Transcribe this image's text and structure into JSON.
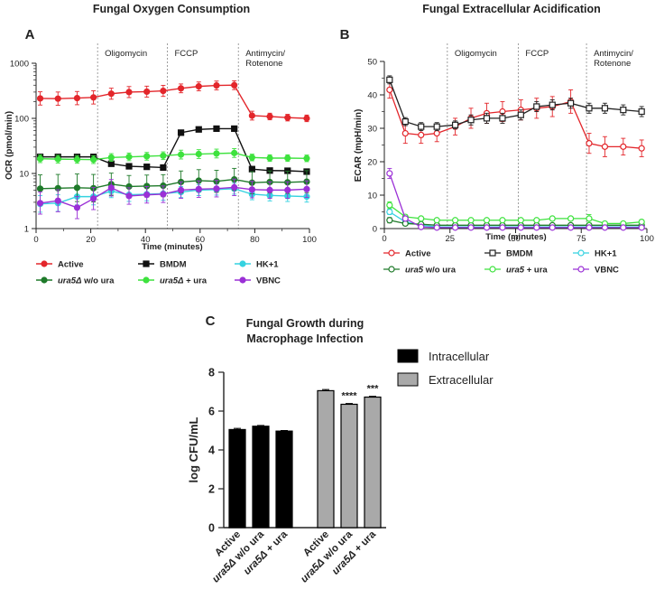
{
  "panels": {
    "a_letter": "A",
    "b_letter": "B",
    "c_letter": "C"
  },
  "chart_data": [
    {
      "panel": "A",
      "type": "line",
      "title": "Fungal Oxygen Consumption",
      "xlabel": "Time (minutes)",
      "ylabel": "OCR (pmol/min)",
      "xlim": [
        0,
        100
      ],
      "ylim": [
        1,
        1000
      ],
      "yscale": "log",
      "xticks": [
        "0",
        "20",
        "40",
        "60",
        "80",
        "100"
      ],
      "yticks": [
        "1",
        "10",
        "100",
        "1000"
      ],
      "injections": [
        {
          "x": 22.5,
          "label": [
            "Oligomycin"
          ]
        },
        {
          "x": 48,
          "label": [
            "FCCP"
          ]
        },
        {
          "x": 74,
          "label": [
            "Antimycin/",
            "Rotenone"
          ]
        }
      ],
      "x": [
        1.5,
        8,
        15,
        21,
        27.5,
        34,
        40.5,
        46.5,
        53,
        59.5,
        66,
        72.5,
        79,
        85.5,
        92,
        99
      ],
      "series": [
        {
          "name": "Active",
          "color": "#e3262b",
          "marker": "circle-filled",
          "values": [
            230,
            228,
            233,
            240,
            280,
            300,
            305,
            315,
            350,
            380,
            395,
            400,
            112,
            108,
            103,
            100
          ],
          "err": [
            0.12,
            0.12,
            0.12,
            0.12,
            0.1,
            0.1,
            0.1,
            0.1,
            0.08,
            0.08,
            0.08,
            0.08,
            0.08,
            0.06,
            0.06,
            0.06
          ]
        },
        {
          "name": "BMDM",
          "color": "#111111",
          "marker": "square-filled",
          "values": [
            20,
            20,
            20,
            20,
            15,
            13.5,
            13.2,
            12.8,
            55,
            63,
            65,
            65,
            12,
            11.3,
            11.2,
            10.8
          ],
          "err": [
            0.02,
            0.02,
            0.02,
            0.02,
            0.02,
            0.02,
            0.02,
            0.02,
            0.02,
            0.02,
            0.02,
            0.02,
            0.02,
            0.02,
            0.02,
            0.02
          ]
        },
        {
          "name": "HK+1",
          "color": "#35d2e0",
          "marker": "circle-filled",
          "values": [
            2.8,
            2.9,
            3.8,
            3.8,
            4.8,
            4.1,
            4.2,
            4.3,
            4.6,
            5.0,
            5.1,
            5.3,
            4.2,
            4.0,
            3.9,
            3.8
          ],
          "err": [
            0.15,
            0.15,
            0.15,
            0.15,
            0.12,
            0.12,
            0.12,
            0.12,
            0.1,
            0.1,
            0.1,
            0.1,
            0.1,
            0.1,
            0.1,
            0.1
          ]
        },
        {
          "name": "ura5Δ w/o ura",
          "name_italic": "ura5Δ",
          "name_rest": " w/o ura",
          "color": "#1f7a2a",
          "marker": "circle-filled",
          "values": [
            5.3,
            5.4,
            5.5,
            5.4,
            6.4,
            5.8,
            5.9,
            6.0,
            7.0,
            7.4,
            7.2,
            7.8,
            6.8,
            7.0,
            6.9,
            7.1
          ],
          "err": [
            0.25,
            0.25,
            0.25,
            0.25,
            0.2,
            0.2,
            0.2,
            0.2,
            0.2,
            0.2,
            0.2,
            0.2,
            0.2,
            0.2,
            0.2,
            0.2
          ]
        },
        {
          "name": "ura5Δ + ura",
          "name_italic": "ura5Δ",
          "name_rest": " + ura",
          "color": "#3ee23e",
          "marker": "circle-filled",
          "values": [
            18.5,
            18.2,
            18.0,
            17.8,
            19.5,
            20.0,
            20.5,
            21.0,
            22.0,
            22.5,
            23.0,
            23.5,
            19.5,
            19.0,
            19.0,
            18.8
          ],
          "err": [
            0.07,
            0.07,
            0.07,
            0.07,
            0.07,
            0.07,
            0.07,
            0.07,
            0.08,
            0.08,
            0.08,
            0.08,
            0.06,
            0.06,
            0.06,
            0.06
          ]
        },
        {
          "name": "VBNC",
          "color": "#9b30d6",
          "marker": "circle-filled",
          "values": [
            2.9,
            3.2,
            2.4,
            3.5,
            5.5,
            3.9,
            4.1,
            4.2,
            5.0,
            5.2,
            5.3,
            5.6,
            5.1,
            5.0,
            5.0,
            5.2
          ],
          "err": [
            0.2,
            0.2,
            0.2,
            0.2,
            0.15,
            0.15,
            0.15,
            0.15,
            0.15,
            0.15,
            0.15,
            0.15,
            0.15,
            0.15,
            0.15,
            0.15
          ]
        }
      ]
    },
    {
      "panel": "B",
      "type": "line",
      "title": "Fungal Extracellular Acidification",
      "xlabel": "Time (minutes)",
      "ylabel": "ECAR (mpH/min)",
      "xlim": [
        0,
        100
      ],
      "ylim": [
        0,
        50
      ],
      "xticks": [
        "0",
        "25",
        "50",
        "75",
        "100"
      ],
      "yticks": [
        "0",
        "10",
        "20",
        "30",
        "40",
        "50"
      ],
      "injections": [
        {
          "x": 24,
          "label": [
            "Oligomycin"
          ]
        },
        {
          "x": 51,
          "label": [
            "FCCP"
          ]
        },
        {
          "x": 77,
          "label": [
            "Antimycin/",
            "Rotenone"
          ]
        }
      ],
      "x": [
        2,
        8,
        14,
        20,
        27,
        33,
        39,
        45,
        52,
        58,
        64,
        71,
        78,
        84,
        91,
        98
      ],
      "series": [
        {
          "name": "Active",
          "color": "#e3262b",
          "marker": "circle-open",
          "values": [
            41.5,
            28.5,
            28,
            28.5,
            30.5,
            33,
            34.5,
            35,
            35.5,
            36,
            36.5,
            38,
            25.5,
            24.5,
            24.5,
            24
          ],
          "err": [
            2.5,
            3,
            2.5,
            2.5,
            2.5,
            3,
            3,
            3,
            3,
            3,
            3,
            3.5,
            3,
            3,
            2.5,
            2.5
          ]
        },
        {
          "name": "BMDM",
          "color": "#222222",
          "marker": "square-open",
          "values": [
            44.5,
            32,
            30.5,
            30.5,
            31,
            32.5,
            33,
            33,
            34,
            36.5,
            37,
            37.5,
            36,
            36,
            35.5,
            35
          ],
          "err": [
            1.2,
            1.2,
            1.2,
            1.2,
            1.2,
            1.5,
            1.5,
            1.5,
            1.5,
            1.5,
            1.5,
            1.5,
            1.5,
            1.5,
            1.5,
            1.5
          ]
        },
        {
          "name": "HK+1",
          "color": "#35d2e0",
          "marker": "circle-open",
          "values": [
            5,
            2,
            1,
            0.5,
            0.5,
            0.5,
            0.5,
            0.5,
            0.5,
            0.5,
            0.5,
            0.5,
            0.5,
            0.5,
            0.5,
            0.5
          ],
          "err": [
            0.8,
            0.5,
            0.3,
            0.3,
            0.3,
            0.3,
            0.3,
            0.3,
            0.3,
            0.3,
            0.3,
            0.3,
            0.3,
            0.3,
            0.3,
            0.3
          ]
        },
        {
          "name": "ura5 w/o ura",
          "name_italic": "ura5",
          "name_rest": " w/o ura",
          "color": "#1f7a2a",
          "marker": "circle-open",
          "values": [
            2.5,
            1.5,
            1.3,
            1,
            1,
            1,
            1,
            1,
            1,
            1,
            1,
            1,
            1,
            1,
            1,
            1
          ],
          "err": [
            0.8,
            0.5,
            0.3,
            0.3,
            0.3,
            0.3,
            0.3,
            0.3,
            0.3,
            0.3,
            0.3,
            0.3,
            0.3,
            0.3,
            0.3,
            0.3
          ]
        },
        {
          "name": "ura5 + ura",
          "name_italic": "ura5",
          "name_rest": " + ura",
          "color": "#3ee23e",
          "marker": "circle-open",
          "values": [
            7,
            3.5,
            3,
            2.5,
            2.5,
            2.5,
            2.5,
            2.5,
            2.5,
            2.5,
            3,
            3,
            3,
            1.5,
            1.5,
            2
          ],
          "err": [
            1,
            0.6,
            0.5,
            0.5,
            0.5,
            0.5,
            0.5,
            0.5,
            0.5,
            0.5,
            0.5,
            0.5,
            1.2,
            0.5,
            0.5,
            0.5
          ]
        },
        {
          "name": "VBNC",
          "color": "#9b30d6",
          "marker": "circle-open",
          "values": [
            16.5,
            3,
            0.5,
            0.3,
            0.3,
            0.3,
            0.3,
            0.3,
            0.3,
            0.3,
            0.3,
            0.3,
            0.3,
            0.3,
            0.3,
            0.3
          ],
          "err": [
            1.5,
            0.6,
            0.3,
            0.2,
            0.2,
            0.2,
            0.2,
            0.2,
            0.2,
            0.2,
            0.2,
            0.2,
            0.2,
            0.2,
            0.2,
            0.2
          ]
        }
      ]
    },
    {
      "panel": "C",
      "type": "bar",
      "title": "Fungal Growth during Macrophage Infection",
      "title_lines": [
        "Fungal Growth during",
        "Macrophage Infection"
      ],
      "ylabel": "log CFU/mL",
      "ylim": [
        0,
        8
      ],
      "yticks": [
        "0",
        "2",
        "4",
        "6",
        "8"
      ],
      "groups": [
        {
          "name": "Intracellular",
          "color": "#000000",
          "bars": [
            {
              "category": "Active",
              "value": 5.05,
              "err": 0.06,
              "sig": ""
            },
            {
              "category": "ura5Δ w/o ura",
              "value": 5.22,
              "err": 0.04,
              "sig": ""
            },
            {
              "category": "ura5Δ + ura",
              "value": 4.97,
              "err": 0.03,
              "sig": ""
            }
          ]
        },
        {
          "name": "Extracellular",
          "color": "#a9a9a9",
          "bars": [
            {
              "category": "Active",
              "value": 7.05,
              "err": 0.06,
              "sig": ""
            },
            {
              "category": "ura5Δ w/o ura",
              "value": 6.35,
              "err": 0.04,
              "sig": "****"
            },
            {
              "category": "ura5Δ + ura",
              "value": 6.72,
              "err": 0.04,
              "sig": "***"
            }
          ]
        }
      ],
      "category_labels": [
        {
          "italic": "",
          "rest": "Active"
        },
        {
          "italic": "ura5Δ",
          "rest": " w/o ura"
        },
        {
          "italic": "ura5Δ",
          "rest": " + ura"
        }
      ]
    }
  ]
}
